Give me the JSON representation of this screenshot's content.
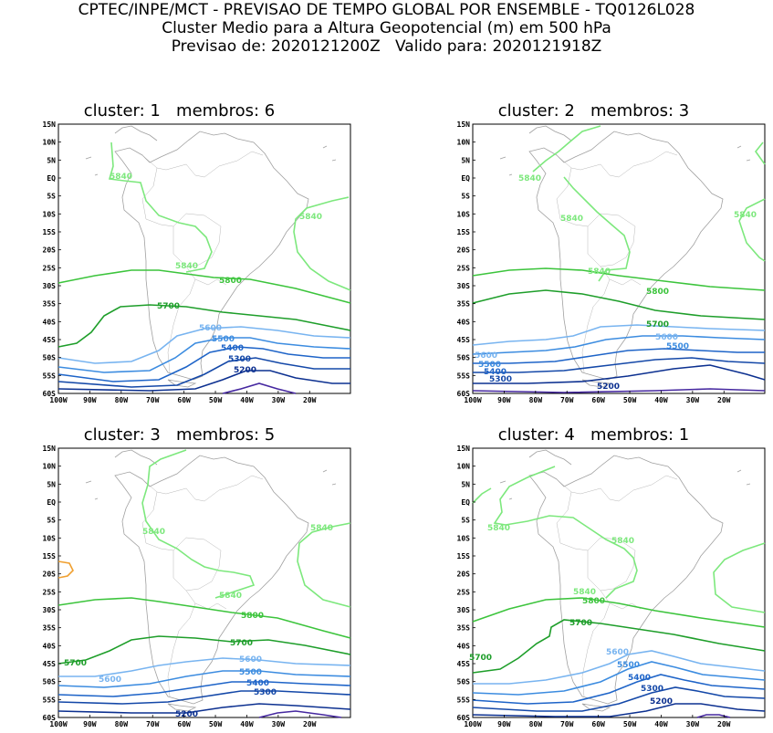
{
  "header": {
    "line1": "CPTEC/INPE/MCT - PREVISAO DE TEMPO GLOBAL POR ENSEMBLE - TQ0126L028",
    "line2": "Cluster Medio para a Altura Geopotencial (m) em 500 hPa",
    "line3": "Previsao de: 2020121200Z   Valido para: 2020121918Z"
  },
  "axes": {
    "y_labels": [
      "15N",
      "10N",
      "5N",
      "EQ",
      "5S",
      "10S",
      "15S",
      "20S",
      "25S",
      "30S",
      "35S",
      "40S",
      "45S",
      "50S",
      "55S",
      "60S"
    ],
    "x_labels": [
      "100W",
      "90W",
      "80W",
      "70W",
      "60W",
      "50W",
      "40W",
      "30W",
      "20W"
    ]
  },
  "colors": {
    "c5840": "#7de87d",
    "c5800": "#3cc43c",
    "c5700": "#1e9e2a",
    "c5600": "#78b4f0",
    "c5500": "#3c8ce0",
    "c5400": "#1e64c8",
    "c5300": "#1448a8",
    "c5200": "#0c3090",
    "c5100": "#4628a0",
    "c5900": "#f0a030",
    "coast": "#a0a0a0"
  },
  "panels": [
    {
      "title": "cluster: 1   membros: 6",
      "labels": {
        "l5840a": "5840",
        "l5840b": "5840",
        "l5840c": "5840",
        "l5800": "5800",
        "l5700": "5700",
        "l5600": "5600",
        "l5500": "5500",
        "l5400": "5400",
        "l5300": "5300",
        "l5200": "5200"
      }
    },
    {
      "title": "cluster: 2   membros: 3",
      "labels": {
        "l5840a": "5840",
        "l5840b": "5840",
        "l5840c": "5840",
        "l5840d": "5840",
        "l5800": "5800",
        "l5700": "5700",
        "l5600a": "5600",
        "l5600b": "5600",
        "l5500a": "5500",
        "l5500b": "5500",
        "l5400": "5400",
        "l5300": "5300",
        "l5200": "5200"
      }
    },
    {
      "title": "cluster: 3   membros: 5",
      "labels": {
        "l5840a": "5840",
        "l5840b": "5840",
        "l5840c": "5840",
        "l5800": "5800",
        "l5700a": "5700",
        "l5700b": "5700",
        "l5600a": "5600",
        "l5600b": "5600",
        "l5500": "5500",
        "l5400": "5400",
        "l5300": "5300",
        "l5200": "5200"
      }
    },
    {
      "title": "cluster: 4   membros: 1",
      "labels": {
        "l5840a": "5840",
        "l5840b": "5840",
        "l5840c": "5840",
        "l5800": "5800",
        "l5700a": "5700",
        "l5700b": "5700",
        "l5600": "5600",
        "l5500": "5500",
        "l5400": "5400",
        "l5300": "5300",
        "l5200": "5200"
      }
    }
  ]
}
